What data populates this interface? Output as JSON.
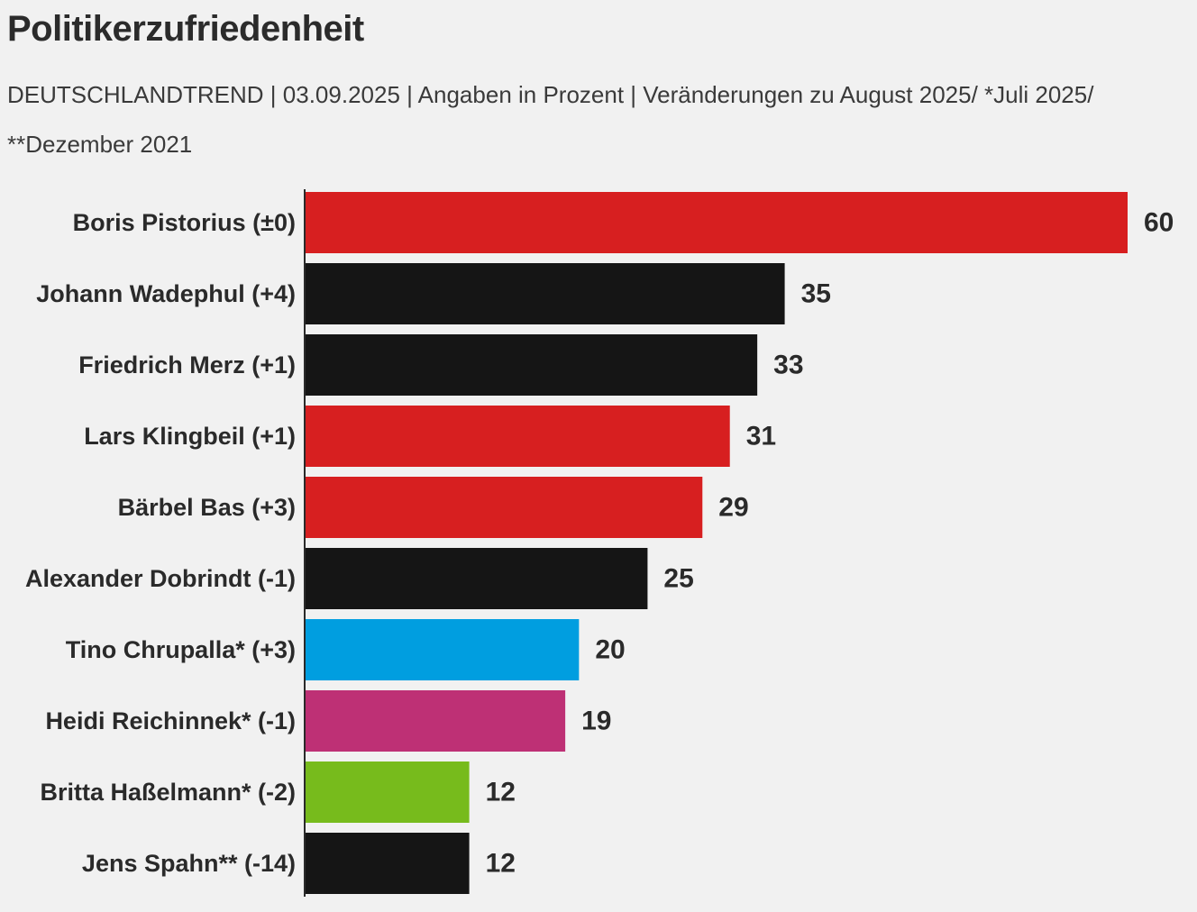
{
  "chart_data": {
    "type": "bar",
    "orientation": "horizontal",
    "title": "Politikerzufriedenheit",
    "subtitle": "DEUTSCHLANDTREND | 03.09.2025 | Angaben in Prozent | Veränderungen zu August 2025/ *Juli 2025/ **Dezember 2021",
    "categories": [
      "Boris Pistorius (±0)",
      "Johann Wadephul (+4)",
      "Friedrich Merz (+1)",
      "Lars Klingbeil (+1)",
      "Bärbel Bas (+3)",
      "Alexander Dobrindt (-1)",
      "Tino Chrupalla* (+3)",
      "Heidi Reichinnek* (-1)",
      "Britta Haßelmann* (-2)",
      "Jens Spahn** (-14)"
    ],
    "values": [
      60,
      35,
      33,
      31,
      29,
      25,
      20,
      19,
      12,
      12
    ],
    "colors": [
      "#d71f20",
      "#151515",
      "#151515",
      "#d71f20",
      "#d71f20",
      "#151515",
      "#009ee0",
      "#be3075",
      "#77bb1c",
      "#151515"
    ],
    "xlim": [
      0,
      60
    ],
    "xlabel": "",
    "ylabel": "",
    "grid": false,
    "legend": "none"
  },
  "colors": {
    "background": "#f1f1f1",
    "axis": "#2a2a2a",
    "text": "#2a2a2a"
  }
}
